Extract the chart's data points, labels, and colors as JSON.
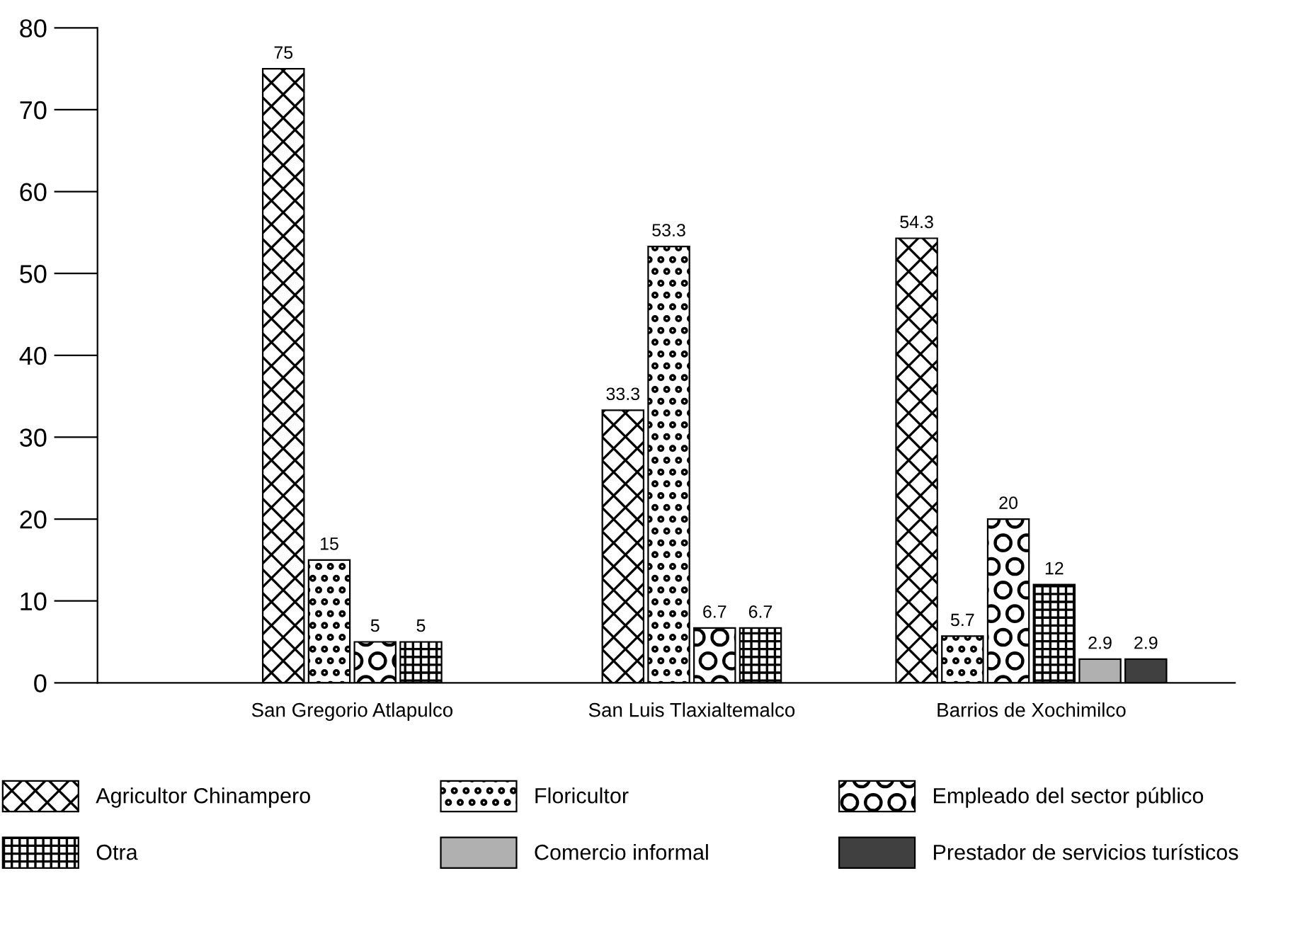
{
  "chart_data": {
    "type": "bar",
    "categories": [
      "San Gregorio Atlapulco",
      "San Luis Tlaxialtemalco",
      "Barrios de Xochimilco"
    ],
    "series": [
      {
        "name": "Agricultor Chinampero",
        "color": "#000000",
        "values": [
          75,
          33.3,
          54.3
        ]
      },
      {
        "name": "Floricultor",
        "color": "#000000",
        "values": [
          15,
          53.3,
          5.7
        ]
      },
      {
        "name": "Empleado del sector público",
        "color": "#000000",
        "values": [
          5,
          6.7,
          20
        ]
      },
      {
        "name": "Otra",
        "color": "#000000",
        "values": [
          5,
          6.7,
          12
        ]
      },
      {
        "name": "Comercio informal",
        "color": "#b0b0b0",
        "values": [
          null,
          null,
          2.9
        ]
      },
      {
        "name": "Prestador de servicios turísticos",
        "color": "#404040",
        "values": [
          null,
          null,
          2.9
        ]
      }
    ],
    "ylim": [
      0,
      80
    ],
    "yticks": [
      0,
      10,
      20,
      30,
      40,
      50,
      60,
      70,
      80
    ],
    "data_labels": true,
    "grid": false,
    "legend": "bottom"
  }
}
